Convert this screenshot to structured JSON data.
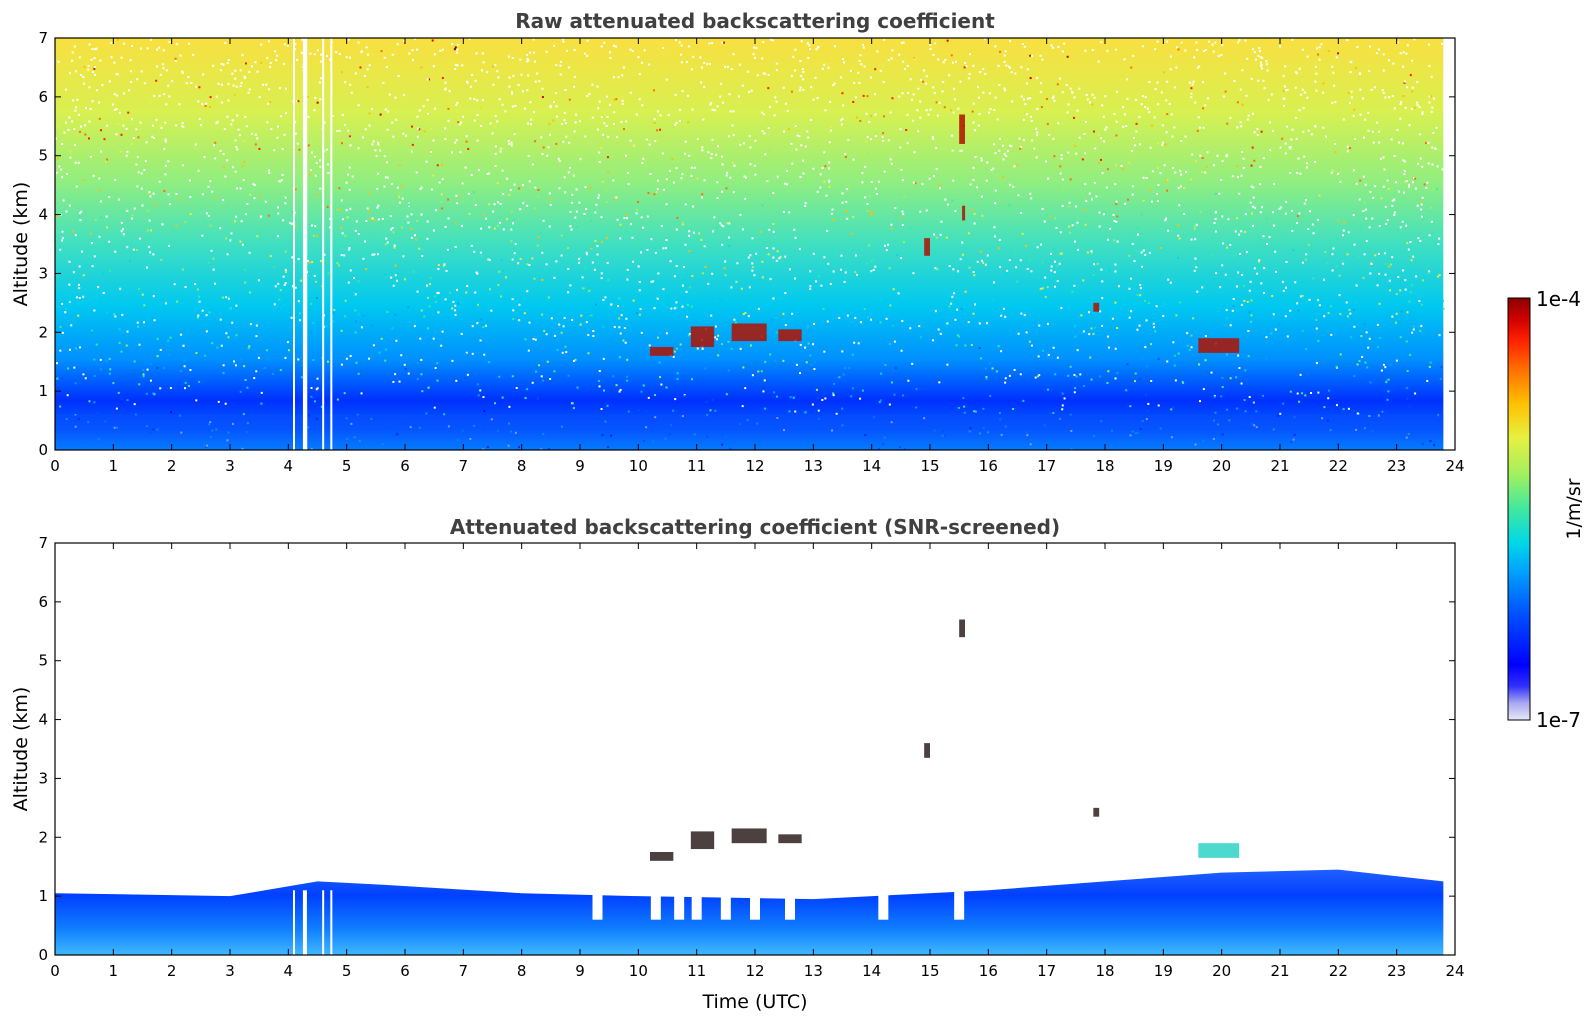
{
  "chart_data": [
    {
      "type": "heatmap",
      "title": "Raw attenuated backscattering coefficient",
      "xlabel": "",
      "ylabel": "Altitude (km)",
      "xlim": [
        0,
        24
      ],
      "ylim": [
        0,
        7
      ],
      "xticks": [
        0,
        1,
        2,
        3,
        4,
        5,
        6,
        7,
        8,
        9,
        10,
        11,
        12,
        13,
        14,
        15,
        16,
        17,
        18,
        19,
        20,
        21,
        22,
        23,
        24
      ],
      "yticks": [
        0,
        1,
        2,
        3,
        4,
        5,
        6,
        7
      ],
      "data_end_time": 23.8,
      "gaps": [
        4.08,
        4.25,
        4.29,
        4.58,
        4.72
      ],
      "clouds": [
        {
          "t": [
            10.2,
            10.6
          ],
          "alt": [
            1.6,
            1.75
          ]
        },
        {
          "t": [
            10.9,
            11.3
          ],
          "alt": [
            1.75,
            2.1
          ]
        },
        {
          "t": [
            11.6,
            12.2
          ],
          "alt": [
            1.85,
            2.15
          ]
        },
        {
          "t": [
            12.4,
            12.8
          ],
          "alt": [
            1.85,
            2.05
          ]
        },
        {
          "t": [
            14.9,
            15.0
          ],
          "alt": [
            3.3,
            3.6
          ]
        },
        {
          "t": [
            15.5,
            15.6
          ],
          "alt": [
            5.2,
            5.7
          ]
        },
        {
          "t": [
            15.55,
            15.6
          ],
          "alt": [
            3.9,
            4.15
          ]
        },
        {
          "t": [
            17.8,
            17.9
          ],
          "alt": [
            2.35,
            2.5
          ]
        },
        {
          "t": [
            19.6,
            20.3
          ],
          "alt": [
            1.65,
            1.9
          ]
        }
      ]
    },
    {
      "type": "heatmap",
      "title": "Attenuated backscattering coefficient (SNR-screened)",
      "xlabel": "Time (UTC)",
      "ylabel": "Altitude (km)",
      "xlim": [
        0,
        24
      ],
      "ylim": [
        0,
        7
      ],
      "xticks": [
        0,
        1,
        2,
        3,
        4,
        5,
        6,
        7,
        8,
        9,
        10,
        11,
        12,
        13,
        14,
        15,
        16,
        17,
        18,
        19,
        20,
        21,
        22,
        23,
        24
      ],
      "yticks": [
        0,
        1,
        2,
        3,
        4,
        5,
        6,
        7
      ],
      "data_end_time": 23.8,
      "boundary_layer_top": [
        [
          0,
          1.05
        ],
        [
          3,
          1.0
        ],
        [
          4.5,
          1.25
        ],
        [
          5.5,
          1.2
        ],
        [
          8,
          1.05
        ],
        [
          10,
          1.0
        ],
        [
          13,
          0.95
        ],
        [
          16,
          1.1
        ],
        [
          18,
          1.25
        ],
        [
          20,
          1.4
        ],
        [
          22,
          1.45
        ],
        [
          23.8,
          1.25
        ]
      ],
      "clouds": [
        {
          "t": [
            10.2,
            10.6
          ],
          "alt": [
            1.6,
            1.75
          ]
        },
        {
          "t": [
            10.9,
            11.3
          ],
          "alt": [
            1.8,
            2.1
          ]
        },
        {
          "t": [
            11.6,
            12.2
          ],
          "alt": [
            1.9,
            2.15
          ]
        },
        {
          "t": [
            12.4,
            12.8
          ],
          "alt": [
            1.9,
            2.05
          ]
        },
        {
          "t": [
            14.9,
            15.0
          ],
          "alt": [
            3.35,
            3.6
          ]
        },
        {
          "t": [
            15.5,
            15.6
          ],
          "alt": [
            5.4,
            5.7
          ]
        },
        {
          "t": [
            17.8,
            17.9
          ],
          "alt": [
            2.35,
            2.5
          ]
        },
        {
          "t": [
            19.6,
            20.3
          ],
          "alt": [
            1.65,
            1.9
          ]
        }
      ]
    }
  ],
  "colorbar": {
    "label": "1/m/sr",
    "min_label": "1e-7",
    "max_label": "1e-4",
    "colormap": [
      "#e8e8f8",
      "#a8a8f0",
      "#3030ff",
      "#0000ff",
      "#0050ff",
      "#00a0ff",
      "#00d8e8",
      "#40e8a0",
      "#a0f060",
      "#e8f040",
      "#ffc000",
      "#ff7000",
      "#ff2000",
      "#d00000",
      "#8b0000"
    ]
  }
}
